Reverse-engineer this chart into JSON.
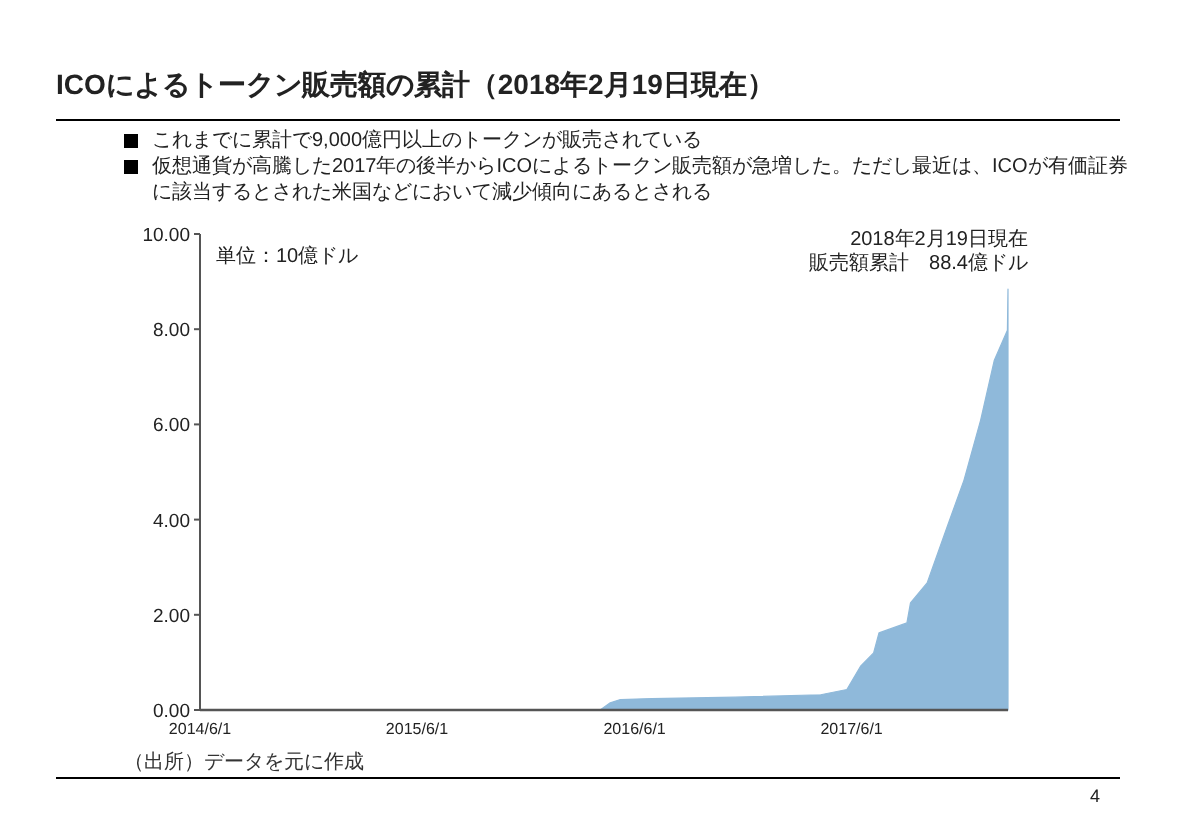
{
  "chart_data": {
    "type": "area",
    "title": "ICOによるトークン販売額の累計（2018年2月19日現在）",
    "annotations": [
      "これまでに累計で9,000億円以上のトークンが販売されている",
      "仮想通貨が高騰した2017年の後半からICOによるトークン販売額が急増した。ただし最近は、ICOが有価証券に該当するとされた米国などにおいて減少傾向にあるとされる",
      "単位：10億ドル",
      {
        "text": "2018年2月19日現在",
        "x": "2018-02-19",
        "y": 8.84
      },
      {
        "text": "販売額累計　88.4億ドル",
        "x": "2018-02-19",
        "y": 8.84
      },
      "（出所）データを元に作成",
      "4"
    ],
    "x": [
      "2016-04-04",
      "2016-04-21",
      "2016-05-08",
      "2016-06-30",
      "2016-11-17",
      "2017-04-10",
      "2017-05-24",
      "2017-06-16",
      "2017-07-08",
      "2017-07-17",
      "2017-09-02",
      "2017-09-08",
      "2017-10-06",
      "2017-11-09",
      "2017-12-07",
      "2018-01-04",
      "2018-01-27",
      "2018-02-18",
      "2018-02-19"
    ],
    "values": [
      0,
      0.15,
      0.22,
      0.24,
      0.27,
      0.32,
      0.43,
      0.92,
      1.2,
      1.62,
      1.83,
      2.25,
      2.67,
      3.86,
      4.83,
      6.09,
      7.35,
      7.98,
      8.84
    ],
    "color": "#8fb9da",
    "xlim": [
      "2014-06-01",
      "2018-02-19"
    ],
    "ylim": [
      0,
      10
    ],
    "xticks": [
      {
        "value": "2014-06-01",
        "label": "2014/6/1"
      },
      {
        "value": "2015-06-01",
        "label": "2015/6/1"
      },
      {
        "value": "2016-06-01",
        "label": "2016/6/1"
      },
      {
        "value": "2017-06-01",
        "label": "2017/6/1"
      }
    ],
    "yticks": [
      {
        "value": 0,
        "label": "0.00"
      },
      {
        "value": 2,
        "label": "2.00"
      },
      {
        "value": 4,
        "label": "4.00"
      },
      {
        "value": 6,
        "label": "6.00"
      },
      {
        "value": 8,
        "label": "8.00"
      },
      {
        "value": 10,
        "label": "10.00"
      }
    ]
  }
}
